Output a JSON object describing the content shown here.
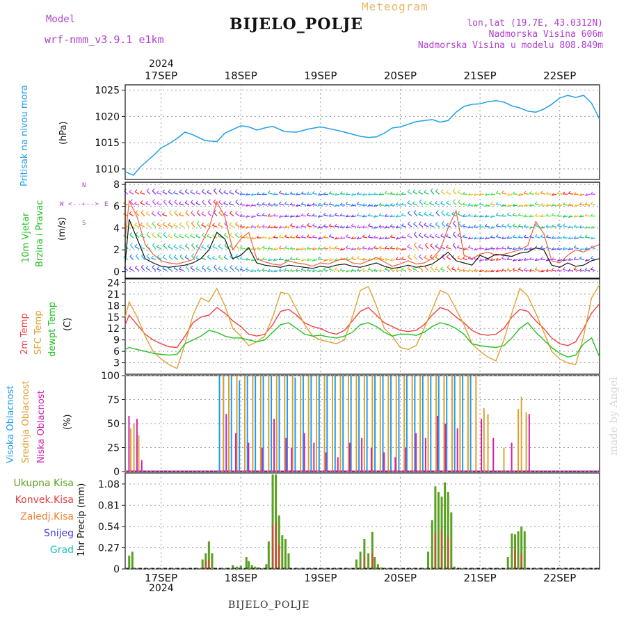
{
  "header": {
    "model_label": "Model",
    "model_name": "wrf-nmm_v3.9.1  e1km",
    "meteogram_label": "Meteogram",
    "station_title": "BIJELO_POLJE",
    "lonlat": "lon,lat (19.7E, 43.0312N)",
    "altitude": "Nadmorska Visina 606m",
    "model_altitude": "Nadmorska Visina u modelu 808.849m"
  },
  "footer": {
    "station": "BIJELO_POLJE"
  },
  "watermark": "made by Angel",
  "time_axis": {
    "year": "2024",
    "days": [
      "17SEP",
      "18SEP",
      "19SEP",
      "20SEP",
      "21SEP",
      "22SEP"
    ]
  },
  "colors": {
    "pressure": "#1e9ee8",
    "temp2m": "#f04040",
    "sfc_temp": "#e0a030",
    "dewpoint": "#20c020",
    "wind_speed": "#111111",
    "high_cloud": "#1a9ee8",
    "mid_cloud": "#e0a030",
    "low_cloud": "#d020b0",
    "total_precip": "#5aa020",
    "conv_precip": "#e04040",
    "freezing": "#f08030",
    "snow": "#4040e0",
    "hail": "#20c0c0"
  },
  "panels": {
    "pressure": {
      "label": "Pritisak na nivou mora",
      "unit": "(hPa)"
    },
    "wind": {
      "label1": "10m Vjetar",
      "label2": "Brzina i Pravac",
      "unit": "(m/s)",
      "compass": {
        "n": "N",
        "s": "S",
        "e": "E",
        "w": "W"
      }
    },
    "temp": {
      "label1": "2m Temp",
      "label2": "SFC Temp",
      "label3": "dewpt Temp",
      "unit": "(C)"
    },
    "cloud": {
      "label1": "Visoka Oblacnost",
      "label2": "Srednja Oblacnost",
      "label3": "Niska Oblacnost",
      "unit": "(%)"
    },
    "precip": {
      "legend": [
        "Ukupna Kisa",
        "Konvek.Kisa",
        "Zaledj.Kisa",
        "Snijeg",
        "Grad"
      ],
      "unit": "1hr Precip (mm)"
    }
  },
  "chart_data": [
    {
      "type": "line",
      "name": "pressure",
      "xlim": [
        16.55,
        22.5
      ],
      "ylim": [
        1008,
        1026
      ],
      "yticks": [
        "1010",
        "1015",
        "1020",
        "1025"
      ],
      "x": [
        16.55,
        16.65,
        16.75,
        16.9,
        17.0,
        17.1,
        17.2,
        17.3,
        17.4,
        17.55,
        17.7,
        17.8,
        17.9,
        18.0,
        18.1,
        18.2,
        18.3,
        18.4,
        18.55,
        18.7,
        18.85,
        19.0,
        19.1,
        19.25,
        19.4,
        19.5,
        19.6,
        19.7,
        19.8,
        19.9,
        20.0,
        20.1,
        20.2,
        20.3,
        20.4,
        20.5,
        20.6,
        20.7,
        20.8,
        20.9,
        21.0,
        21.1,
        21.2,
        21.3,
        21.4,
        21.5,
        21.6,
        21.7,
        21.8,
        21.9,
        22.0,
        22.1,
        22.2,
        22.3,
        22.4,
        22.5
      ],
      "y": [
        1009.5,
        1008.8,
        1010.5,
        1012.5,
        1014,
        1014.8,
        1015.8,
        1017,
        1016.5,
        1015.4,
        1015.2,
        1016.8,
        1017.5,
        1018.2,
        1018.0,
        1017.4,
        1017.8,
        1018.1,
        1017.1,
        1017.0,
        1017.6,
        1018.0,
        1017.7,
        1017.2,
        1016.6,
        1016.2,
        1016.0,
        1016.1,
        1016.8,
        1017.8,
        1018.0,
        1018.5,
        1019.0,
        1019.2,
        1019.4,
        1018.9,
        1019.2,
        1020.8,
        1021.9,
        1022.3,
        1022.4,
        1022.8,
        1023.0,
        1022.7,
        1022.0,
        1021.6,
        1021.0,
        1020.8,
        1021.4,
        1022.3,
        1023.5,
        1024.0,
        1023.6,
        1024.0,
        1022.5,
        1019.5
      ]
    },
    {
      "type": "line",
      "name": "wind",
      "xlim": [
        16.55,
        22.5
      ],
      "ylim": [
        -0.6,
        8.2
      ],
      "yticks": [
        "0",
        "2",
        "4",
        "6",
        "8"
      ],
      "x": [
        16.55,
        16.6,
        16.7,
        16.8,
        16.9,
        17.0,
        17.1,
        17.2,
        17.3,
        17.4,
        17.5,
        17.6,
        17.7,
        17.8,
        17.9,
        18.0,
        18.1,
        18.2,
        18.3,
        18.4,
        18.5,
        18.6,
        18.7,
        18.8,
        18.9,
        19.0,
        19.1,
        19.2,
        19.3,
        19.4,
        19.5,
        19.6,
        19.7,
        19.8,
        19.9,
        20.0,
        20.1,
        20.2,
        20.3,
        20.4,
        20.5,
        20.6,
        20.7,
        20.8,
        20.9,
        21.0,
        21.1,
        21.2,
        21.3,
        21.4,
        21.5,
        21.6,
        21.7,
        21.8,
        21.9,
        22.0,
        22.1,
        22.2,
        22.3,
        22.4,
        22.5
      ],
      "series": [
        {
          "name": "speed",
          "values": [
            0.8,
            4.8,
            3.0,
            1.2,
            0.8,
            0.5,
            0.4,
            0.5,
            0.6,
            0.8,
            1.2,
            2.0,
            3.6,
            3.0,
            1.2,
            1.5,
            2.2,
            0.8,
            0.6,
            0.5,
            0.4,
            0.6,
            0.5,
            0.4,
            0.3,
            0.5,
            0.4,
            0.6,
            0.7,
            0.5,
            0.4,
            0.6,
            0.8,
            0.5,
            0.3,
            0.4,
            0.6,
            0.4,
            0.5,
            0.7,
            1.2,
            1.8,
            1.0,
            0.8,
            0.6,
            1.5,
            1.2,
            1.6,
            1.5,
            1.4,
            1.7,
            1.8,
            2.2,
            2.0,
            0.6,
            0.4,
            0.8,
            0.5,
            0.6,
            1.0,
            1.2
          ]
        },
        {
          "name": "gust",
          "values": [
            3.0,
            6.5,
            5.0,
            2.5,
            1.6,
            1.0,
            0.8,
            0.7,
            0.9,
            1.1,
            2.5,
            4.0,
            6.4,
            5.0,
            2.0,
            3.0,
            3.6,
            1.2,
            0.9,
            0.7,
            0.6,
            1.0,
            0.8,
            0.7,
            0.5,
            0.8,
            0.7,
            1.0,
            1.2,
            0.8,
            0.7,
            1.0,
            1.3,
            0.9,
            0.5,
            0.7,
            1.0,
            0.7,
            0.8,
            1.2,
            2.0,
            4.0,
            5.6,
            1.5,
            1.2,
            1.6,
            1.8,
            1.5,
            1.6,
            1.8,
            2.0,
            2.4,
            4.6,
            3.5,
            1.0,
            0.8,
            1.5,
            2.0,
            1.8,
            2.2,
            2.5
          ]
        }
      ]
    },
    {
      "type": "line",
      "name": "temperature",
      "xlim": [
        16.55,
        22.5
      ],
      "ylim": [
        0,
        25
      ],
      "yticks": [
        "3",
        "6",
        "9",
        "12",
        "15",
        "18",
        "21",
        "24"
      ],
      "x": [
        16.55,
        16.6,
        16.7,
        16.8,
        16.9,
        17.0,
        17.1,
        17.2,
        17.3,
        17.4,
        17.5,
        17.6,
        17.7,
        17.8,
        17.9,
        18.0,
        18.1,
        18.2,
        18.3,
        18.4,
        18.5,
        18.6,
        18.7,
        18.8,
        18.9,
        19.0,
        19.1,
        19.2,
        19.3,
        19.4,
        19.5,
        19.6,
        19.7,
        19.8,
        19.9,
        20.0,
        20.1,
        20.2,
        20.3,
        20.4,
        20.5,
        20.6,
        20.7,
        20.8,
        20.9,
        21.0,
        21.1,
        21.2,
        21.3,
        21.4,
        21.5,
        21.6,
        21.7,
        21.8,
        21.9,
        22.0,
        22.1,
        22.2,
        22.3,
        22.4,
        22.5
      ],
      "series": [
        {
          "name": "2m",
          "values": [
            13,
            15.5,
            13,
            10.5,
            9,
            8,
            7.2,
            7,
            10,
            13.5,
            15,
            15.5,
            17.5,
            16,
            14,
            12.5,
            10.5,
            10,
            10.5,
            13,
            16.5,
            17,
            15.5,
            13.5,
            12.5,
            12,
            11,
            10.5,
            11.5,
            14,
            16.5,
            17.5,
            15.5,
            13.5,
            12.5,
            11.5,
            11.2,
            11.5,
            13,
            15.5,
            17.5,
            16.8,
            15,
            13.5,
            11.5,
            10.5,
            10.2,
            10.5,
            12,
            15,
            17,
            16.5,
            14,
            12,
            9.5,
            8,
            7.5,
            8.5,
            12,
            16,
            18.5
          ]
        },
        {
          "name": "sfc",
          "values": [
            15,
            19,
            15,
            10,
            6,
            4,
            2.5,
            1.5,
            8,
            15.5,
            20,
            19,
            22.5,
            18,
            12,
            10,
            7.5,
            8.5,
            10,
            15,
            21.5,
            21,
            17,
            13,
            10,
            9,
            8.5,
            8,
            9,
            15,
            22,
            23,
            18,
            12,
            10,
            7,
            6.5,
            7.5,
            12,
            17,
            22,
            21,
            17,
            13,
            8,
            6,
            4.5,
            3.5,
            9,
            16,
            22.5,
            20.5,
            16,
            11,
            6,
            4,
            3,
            2.5,
            10,
            20,
            23.5
          ]
        },
        {
          "name": "dewpt",
          "values": [
            6.5,
            7,
            6.5,
            6,
            5.5,
            5.2,
            5,
            5.2,
            8,
            9,
            10,
            11.5,
            11,
            10,
            9.5,
            9.5,
            9,
            8.5,
            9,
            11,
            13,
            13.5,
            12,
            10.5,
            10,
            10.2,
            9.8,
            9.5,
            10,
            11,
            13,
            13.5,
            12.5,
            11,
            10,
            10.5,
            10.5,
            10.2,
            11,
            12.5,
            13.5,
            13,
            12,
            10.5,
            8,
            7.5,
            7.2,
            7,
            7.5,
            9.5,
            12,
            13.5,
            11,
            9,
            7,
            5.5,
            4.5,
            5,
            8,
            9.5,
            4.5
          ]
        }
      ]
    },
    {
      "type": "bar",
      "name": "cloud_cover",
      "xlim": [
        16.55,
        22.5
      ],
      "ylim": [
        0,
        100
      ],
      "yticks": [
        "0",
        "25",
        "50",
        "75",
        "100"
      ],
      "series": [
        {
          "name": "high",
          "x": [
            17.75,
            17.8,
            17.9,
            18.0,
            18.1,
            18.2,
            18.3,
            18.4,
            18.5,
            18.6,
            18.7,
            18.8,
            18.9,
            19.0,
            19.1,
            19.2,
            19.3,
            19.4,
            19.5,
            19.6,
            19.7,
            19.8,
            19.9,
            20.0,
            20.1,
            20.2,
            20.3,
            20.4,
            20.5,
            20.6,
            20.7,
            20.8,
            20.9
          ],
          "values": [
            100,
            100,
            100,
            95,
            100,
            100,
            100,
            100,
            100,
            100,
            98,
            100,
            100,
            100,
            100,
            100,
            100,
            100,
            100,
            100,
            100,
            100,
            100,
            100,
            100,
            100,
            100,
            100,
            100,
            100,
            100,
            100,
            100
          ]
        },
        {
          "name": "mid",
          "x": [
            16.62,
            16.66,
            16.72,
            17.78,
            17.85,
            17.95,
            18.05,
            18.15,
            18.25,
            18.35,
            18.45,
            18.55,
            18.65,
            18.75,
            18.85,
            18.95,
            19.05,
            19.15,
            19.25,
            19.35,
            19.45,
            19.55,
            19.65,
            19.75,
            19.85,
            19.95,
            20.05,
            20.15,
            20.25,
            20.35,
            20.45,
            20.55,
            20.65,
            20.75,
            20.85,
            20.95,
            21.05,
            21.1,
            21.3,
            21.48,
            21.52,
            21.58
          ],
          "values": [
            45,
            50,
            38,
            100,
            100,
            100,
            100,
            100,
            100,
            100,
            100,
            100,
            100,
            100,
            100,
            100,
            100,
            100,
            100,
            100,
            100,
            100,
            100,
            100,
            100,
            100,
            100,
            100,
            100,
            100,
            100,
            100,
            100,
            100,
            100,
            100,
            66,
            60,
            25,
            65,
            78,
            62
          ]
        },
        {
          "name": "low",
          "x": [
            16.58,
            16.68,
            16.74,
            17.8,
            17.92,
            18.08,
            18.25,
            18.4,
            18.55,
            18.62,
            18.78,
            18.9,
            19.05,
            19.2,
            19.35,
            19.5,
            19.62,
            19.78,
            19.92,
            20.05,
            20.18,
            20.3,
            20.45,
            20.55,
            20.7,
            21.0,
            21.15,
            21.38,
            21.6
          ],
          "values": [
            58,
            55,
            12,
            60,
            40,
            30,
            25,
            55,
            35,
            25,
            40,
            30,
            20,
            15,
            30,
            35,
            25,
            20,
            15,
            25,
            40,
            35,
            58,
            50,
            45,
            55,
            35,
            30,
            60
          ]
        }
      ]
    },
    {
      "type": "bar",
      "name": "precipitation",
      "xlim": [
        16.55,
        22.5
      ],
      "ylim": [
        0,
        1.22
      ],
      "yticks": [
        "0",
        "0.27",
        "0.54",
        "0.81",
        "1.08"
      ],
      "series": [
        {
          "name": "total",
          "x": [
            16.6,
            16.64,
            17.52,
            17.56,
            17.6,
            17.64,
            17.9,
            17.95,
            18.0,
            18.07,
            18.1,
            18.14,
            18.18,
            18.22,
            18.32,
            18.35,
            18.4,
            18.44,
            18.48,
            18.52,
            18.56,
            18.6,
            19.45,
            19.5,
            19.55,
            19.6,
            19.65,
            19.68,
            19.72,
            19.76,
            20.35,
            20.4,
            20.44,
            20.48,
            20.52,
            20.56,
            20.6,
            20.64,
            20.68,
            21.35,
            21.4,
            21.44,
            21.48,
            21.52,
            21.56
          ],
          "values": [
            0.17,
            0.22,
            0.12,
            0.2,
            0.35,
            0.2,
            0.05,
            0.03,
            0.04,
            0.15,
            0.1,
            0.05,
            0.03,
            0.02,
            0.06,
            0.35,
            1.2,
            1.2,
            0.68,
            0.43,
            0.38,
            0.2,
            0.12,
            0.22,
            0.38,
            0.2,
            0.47,
            0.15,
            0.06,
            0.02,
            0.22,
            0.62,
            1.05,
            0.98,
            0.92,
            1.1,
            0.98,
            0.72,
            0.03,
            0.15,
            0.45,
            0.44,
            0.48,
            0.54,
            0.48
          ]
        },
        {
          "name": "convective",
          "x": [
            17.56,
            17.6,
            18.4,
            18.44,
            18.48,
            19.55,
            19.65,
            20.44,
            20.52,
            20.6,
            21.44,
            21.52
          ],
          "values": [
            0.1,
            0.12,
            0.55,
            0.6,
            0.3,
            0.15,
            0.2,
            0.45,
            0.5,
            0.4,
            0.25,
            0.2
          ]
        }
      ]
    }
  ]
}
